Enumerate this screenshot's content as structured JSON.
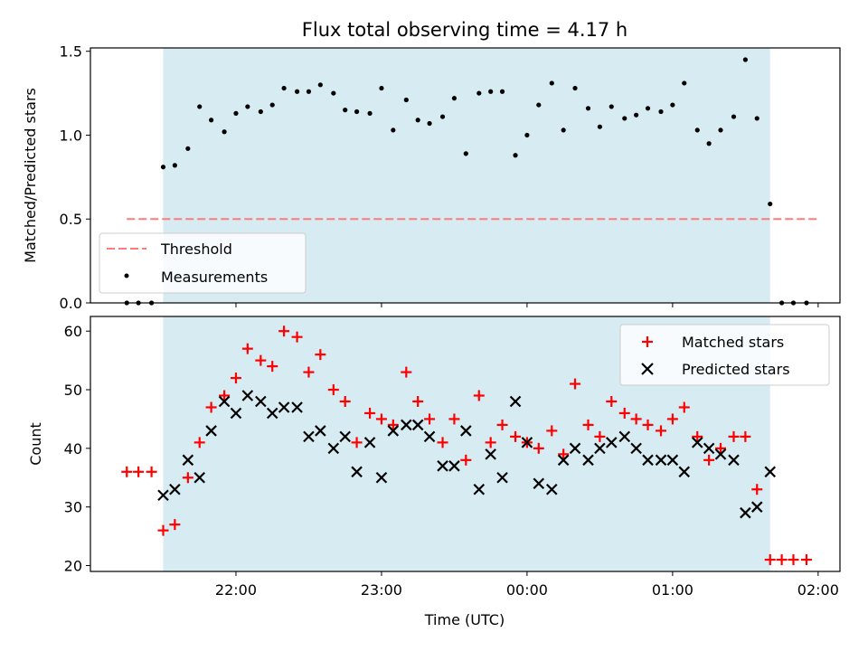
{
  "chart_data": [
    {
      "type": "scatter",
      "title": "Flux total observing time = 4.17 h",
      "ylabel": "Matched/Predicted stars",
      "ylim": [
        0,
        1.52
      ],
      "yticks": [
        0.0,
        0.5,
        1.0,
        1.5
      ],
      "ytick_labels": [
        "0.0",
        "0.5",
        "1.0",
        "1.5"
      ],
      "shaded_interval_hours": [
        -0.5,
        3.67
      ],
      "threshold": {
        "name": "Threshold",
        "value": 0.5,
        "x_start_hours": -0.75,
        "x_end_hours": 4.0,
        "color": "#ff7b7b"
      },
      "legend": {
        "position": "lower-left",
        "entries": [
          "Threshold",
          "Measurements"
        ]
      },
      "series": [
        {
          "name": "Measurements",
          "color": "#000000",
          "x_hours": [
            -0.75,
            -0.67,
            -0.58,
            -0.5,
            -0.42,
            -0.33,
            -0.25,
            -0.17,
            -0.08,
            0.0,
            0.08,
            0.17,
            0.25,
            0.33,
            0.42,
            0.5,
            0.58,
            0.67,
            0.75,
            0.83,
            0.92,
            1.0,
            1.08,
            1.17,
            1.25,
            1.33,
            1.42,
            1.5,
            1.58,
            1.67,
            1.75,
            1.83,
            1.92,
            2.0,
            2.08,
            2.17,
            2.25,
            2.33,
            2.42,
            2.5,
            2.58,
            2.67,
            2.75,
            2.83,
            2.92,
            3.0,
            3.08,
            3.17,
            3.25,
            3.33,
            3.42,
            3.5,
            3.58,
            3.67,
            3.75,
            3.83,
            3.92
          ],
          "values": [
            0,
            0,
            0,
            0.81,
            0.82,
            0.92,
            1.17,
            1.09,
            1.02,
            1.13,
            1.17,
            1.14,
            1.18,
            1.28,
            1.26,
            1.26,
            1.3,
            1.25,
            1.15,
            1.14,
            1.13,
            1.28,
            1.03,
            1.21,
            1.09,
            1.07,
            1.11,
            1.22,
            0.89,
            1.25,
            1.26,
            1.26,
            0.88,
            1.0,
            1.18,
            1.31,
            1.03,
            1.28,
            1.16,
            1.05,
            1.17,
            1.1,
            1.12,
            1.16,
            1.14,
            1.18,
            1.31,
            1.03,
            0.95,
            1.03,
            1.11,
            1.45,
            1.1,
            0.59,
            0,
            0,
            0
          ]
        }
      ]
    },
    {
      "type": "scatter",
      "xlabel": "Time (UTC)",
      "ylabel": "Count",
      "ylim": [
        19,
        62.5
      ],
      "yticks": [
        20,
        30,
        40,
        50,
        60
      ],
      "ytick_labels": [
        "20",
        "30",
        "40",
        "50",
        "60"
      ],
      "xlim_hours": [
        -1.0,
        4.15
      ],
      "xticks_hours": [
        0,
        1,
        2,
        3,
        4
      ],
      "xtick_labels": [
        "22:00",
        "23:00",
        "00:00",
        "01:00",
        "02:00"
      ],
      "shaded_interval_hours": [
        -0.5,
        3.67
      ],
      "legend": {
        "position": "top-right",
        "entries": [
          "Matched stars",
          "Predicted stars"
        ]
      },
      "series": [
        {
          "name": "Matched stars",
          "marker": "+",
          "color": "#ff0000",
          "x_hours": [
            -0.75,
            -0.67,
            -0.58,
            -0.5,
            -0.42,
            -0.33,
            -0.25,
            -0.17,
            -0.08,
            0.0,
            0.08,
            0.17,
            0.25,
            0.33,
            0.42,
            0.5,
            0.58,
            0.67,
            0.75,
            0.83,
            0.92,
            1.0,
            1.08,
            1.17,
            1.25,
            1.33,
            1.42,
            1.5,
            1.58,
            1.67,
            1.75,
            1.83,
            1.92,
            2.0,
            2.08,
            2.17,
            2.25,
            2.33,
            2.42,
            2.5,
            2.58,
            2.67,
            2.75,
            2.83,
            2.92,
            3.0,
            3.08,
            3.17,
            3.25,
            3.33,
            3.42,
            3.5,
            3.58,
            3.67,
            3.75,
            3.83,
            3.92
          ],
          "values": [
            36,
            36,
            36,
            26,
            27,
            35,
            41,
            47,
            49,
            52,
            57,
            55,
            54,
            60,
            59,
            53,
            56,
            50,
            48,
            41,
            46,
            45,
            44,
            53,
            48,
            45,
            41,
            45,
            38,
            49,
            41,
            44,
            42,
            41,
            40,
            43,
            39,
            51,
            44,
            42,
            48,
            46,
            45,
            44,
            43,
            45,
            47,
            42,
            38,
            40,
            42,
            42,
            33,
            21,
            21,
            21,
            21
          ]
        },
        {
          "name": "Predicted stars",
          "marker": "x",
          "color": "#000000",
          "x_hours": [
            -0.5,
            -0.42,
            -0.33,
            -0.25,
            -0.17,
            -0.08,
            0.0,
            0.08,
            0.17,
            0.25,
            0.33,
            0.42,
            0.5,
            0.58,
            0.67,
            0.75,
            0.83,
            0.92,
            1.0,
            1.08,
            1.17,
            1.25,
            1.33,
            1.42,
            1.5,
            1.58,
            1.67,
            1.75,
            1.83,
            1.92,
            2.0,
            2.08,
            2.17,
            2.25,
            2.33,
            2.42,
            2.5,
            2.58,
            2.67,
            2.75,
            2.83,
            2.92,
            3.0,
            3.08,
            3.17,
            3.25,
            3.33,
            3.42,
            3.5,
            3.58,
            3.67
          ],
          "values": [
            32,
            33,
            38,
            35,
            43,
            48,
            46,
            49,
            48,
            46,
            47,
            47,
            42,
            43,
            40,
            42,
            36,
            41,
            35,
            43,
            44,
            44,
            42,
            37,
            37,
            43,
            33,
            39,
            35,
            48,
            41,
            34,
            33,
            38,
            40,
            38,
            40,
            41,
            42,
            40,
            38,
            38,
            38,
            36,
            41,
            40,
            39,
            38,
            29,
            30,
            36
          ]
        }
      ]
    }
  ]
}
